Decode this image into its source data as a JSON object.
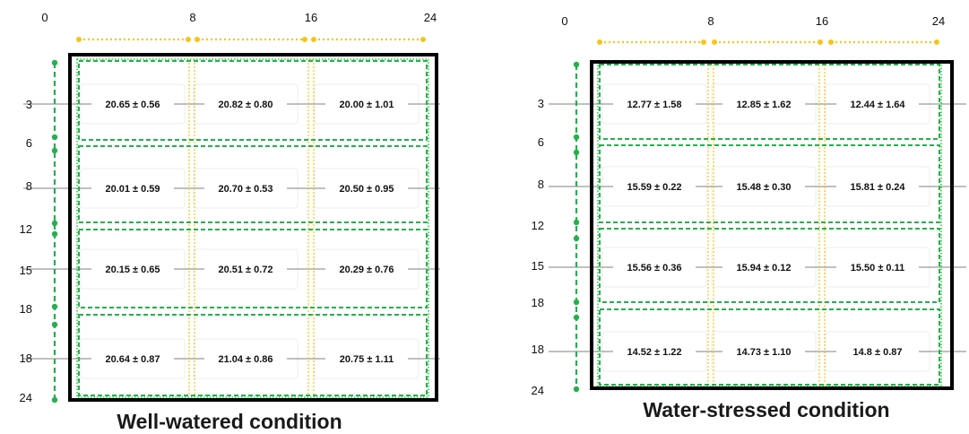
{
  "panels": [
    {
      "caption": "Well-watered condition",
      "x_ticks": [
        "0",
        "8",
        "16",
        "24"
      ],
      "y_ticks": [
        "3",
        "6",
        "8",
        "12",
        "15",
        "18",
        "18",
        "24"
      ],
      "cells": [
        [
          "20.65 ± 0.56",
          "20.82 ± 0.80",
          "20.00 ± 1.01"
        ],
        [
          "20.01 ± 0.59",
          "20.70 ± 0.53",
          "20.50 ± 0.95"
        ],
        [
          "20.15 ± 0.65",
          "20.51 ± 0.72",
          "20.29 ± 0.76"
        ],
        [
          "20.64 ± 0.87",
          "21.04 ± 0.86",
          "20.75 ± 1.11"
        ]
      ]
    },
    {
      "caption": "Water-stressed condition",
      "x_ticks": [
        "0",
        "8",
        "16",
        "24"
      ],
      "y_ticks": [
        "3",
        "6",
        "8",
        "12",
        "15",
        "18",
        "18",
        "24"
      ],
      "cells": [
        [
          "12.77 ± 1.58",
          "12.85 ± 1.62",
          "12.44 ± 1.64"
        ],
        [
          "15.59 ± 0.22",
          "15.48 ± 0.30",
          "15.81 ± 0.24"
        ],
        [
          "15.56 ± 0.36",
          "15.94 ± 0.12",
          "15.50 ± 0.11"
        ],
        [
          "14.52 ± 1.22",
          "14.73 ± 1.10",
          "14.8 ± 0.87"
        ]
      ]
    }
  ],
  "colors": {
    "frame": "#000000",
    "green_dash": "#22b14c",
    "green_dot": "#2ecc40",
    "yellow": "#f5c518",
    "gray_line": "#9a9a9a"
  }
}
